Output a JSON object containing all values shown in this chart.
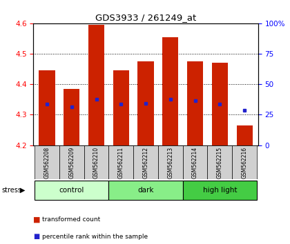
{
  "title": "GDS3933 / 261249_at",
  "samples": [
    "GSM562208",
    "GSM562209",
    "GSM562210",
    "GSM562211",
    "GSM562212",
    "GSM562213",
    "GSM562214",
    "GSM562215",
    "GSM562216"
  ],
  "bar_tops": [
    4.445,
    4.385,
    4.595,
    4.445,
    4.475,
    4.555,
    4.475,
    4.47,
    4.265
  ],
  "bar_bottoms": [
    4.2,
    4.2,
    4.2,
    4.2,
    4.2,
    4.2,
    4.2,
    4.2,
    4.2
  ],
  "percentile_vals": [
    4.335,
    4.325,
    4.35,
    4.335,
    4.337,
    4.35,
    4.345,
    4.335,
    4.315
  ],
  "ylim": [
    4.2,
    4.6
  ],
  "yticks_left": [
    4.2,
    4.3,
    4.4,
    4.5,
    4.6
  ],
  "yticks_right": [
    0,
    25,
    50,
    75,
    100
  ],
  "bar_color": "#CC2200",
  "percentile_color": "#2222CC",
  "groups": [
    {
      "label": "control",
      "start": 0,
      "end": 3,
      "color": "#CCFFCC"
    },
    {
      "label": "dark",
      "start": 3,
      "end": 6,
      "color": "#88EE88"
    },
    {
      "label": "high light",
      "start": 6,
      "end": 9,
      "color": "#44CC44"
    }
  ],
  "stress_label": "stress",
  "legend_bar_label": "transformed count",
  "legend_dot_label": "percentile rank within the sample",
  "plot_bg": "#FFFFFF",
  "label_bg": "#D0D0D0"
}
